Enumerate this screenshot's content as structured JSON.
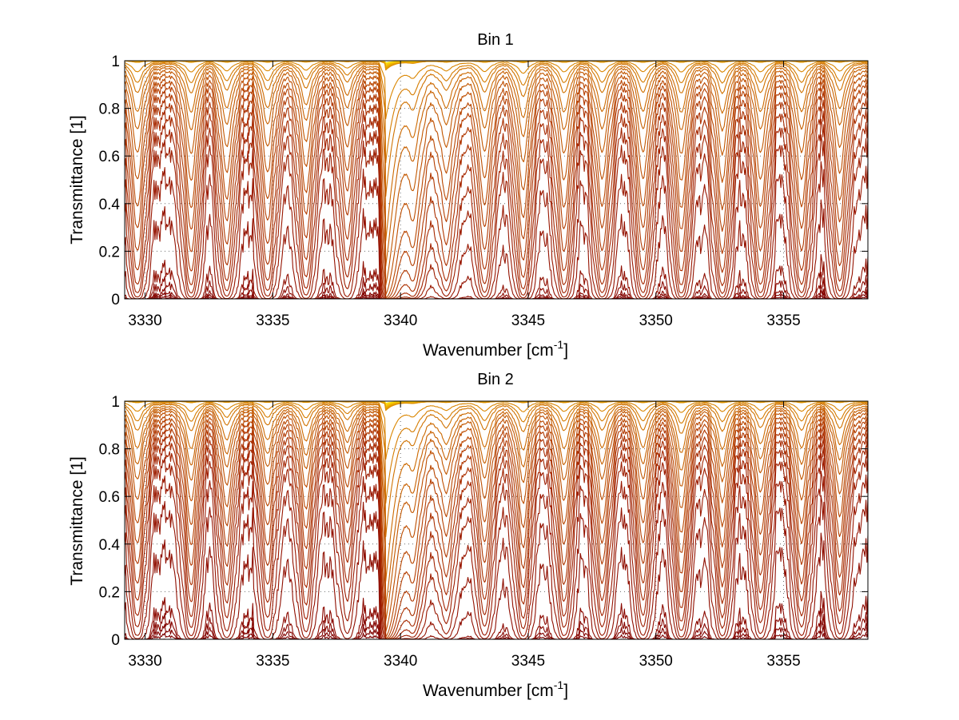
{
  "chart_data": [
    {
      "type": "line",
      "title": "Bin 1",
      "xlabel": "Wavenumber [cm",
      "xlabel_sup": "-1",
      "xlabel_close": "]",
      "ylabel": "Transmittance [1]",
      "xlim": [
        3329.2,
        3358.3
      ],
      "ylim": [
        0,
        1
      ],
      "xticks": [
        3330,
        3335,
        3340,
        3345,
        3350,
        3355
      ],
      "xtick_labels": [
        "3330",
        "3335",
        "3340",
        "3345",
        "3350",
        "3355"
      ],
      "yticks": [
        0,
        0.2,
        0.4,
        0.6,
        0.8,
        1
      ],
      "ytick_labels": [
        "0",
        "0.2",
        "0.4",
        "0.6",
        "0.8",
        "1"
      ],
      "grid": true,
      "band_edge": 3339.4,
      "lines": [
        {
          "x": 3329.7,
          "weight": 1.0
        },
        {
          "x": 3331.8,
          "weight": 1.0
        },
        {
          "x": 3333.2,
          "weight": 0.9
        },
        {
          "x": 3334.8,
          "weight": 0.9
        },
        {
          "x": 3336.3,
          "weight": 0.8
        },
        {
          "x": 3337.9,
          "weight": 0.6
        },
        {
          "x": 3340.5,
          "weight": 1.0
        },
        {
          "x": 3341.8,
          "weight": 0.7
        },
        {
          "x": 3343.3,
          "weight": 0.9
        },
        {
          "x": 3344.8,
          "weight": 1.1
        },
        {
          "x": 3346.4,
          "weight": 1.0
        },
        {
          "x": 3347.9,
          "weight": 1.0
        },
        {
          "x": 3349.5,
          "weight": 1.0
        },
        {
          "x": 3351.0,
          "weight": 1.0
        },
        {
          "x": 3352.6,
          "weight": 1.0
        },
        {
          "x": 3354.1,
          "weight": 1.0
        },
        {
          "x": 3355.7,
          "weight": 1.0
        },
        {
          "x": 3357.2,
          "weight": 0.9
        }
      ],
      "curve_baselines": [
        1.0,
        1.0,
        1.0,
        1.0,
        1.0,
        1.0,
        1.0,
        1.0,
        0.995,
        0.99,
        0.985,
        0.975,
        0.965,
        0.95,
        0.93,
        0.905,
        0.88,
        0.845,
        0.8,
        0.745,
        0.68,
        0.6,
        0.47,
        0.3,
        0.1,
        0.05,
        0.02,
        0.01,
        0.003,
        0.0
      ]
    },
    {
      "type": "line",
      "title": "Bin 2",
      "xlabel": "Wavenumber [cm",
      "xlabel_sup": "-1",
      "xlabel_close": "]",
      "ylabel": "Transmittance [1]",
      "xlim": [
        3329.2,
        3358.3
      ],
      "ylim": [
        0,
        1
      ],
      "xticks": [
        3330,
        3335,
        3340,
        3345,
        3350,
        3355
      ],
      "xtick_labels": [
        "3330",
        "3335",
        "3340",
        "3345",
        "3350",
        "3355"
      ],
      "yticks": [
        0,
        0.2,
        0.4,
        0.6,
        0.8,
        1
      ],
      "ytick_labels": [
        "0",
        "0.2",
        "0.4",
        "0.6",
        "0.8",
        "1"
      ],
      "grid": true,
      "band_edge": 3339.4,
      "lines": [
        {
          "x": 3329.7,
          "weight": 0.9
        },
        {
          "x": 3331.8,
          "weight": 0.9
        },
        {
          "x": 3333.2,
          "weight": 0.7
        },
        {
          "x": 3334.8,
          "weight": 0.7
        },
        {
          "x": 3336.3,
          "weight": 0.7
        },
        {
          "x": 3337.9,
          "weight": 0.5
        },
        {
          "x": 3340.5,
          "weight": 0.8
        },
        {
          "x": 3341.8,
          "weight": 0.6
        },
        {
          "x": 3343.3,
          "weight": 0.8
        },
        {
          "x": 3344.8,
          "weight": 0.9
        },
        {
          "x": 3346.4,
          "weight": 0.9
        },
        {
          "x": 3347.9,
          "weight": 0.9
        },
        {
          "x": 3349.5,
          "weight": 0.9
        },
        {
          "x": 3351.0,
          "weight": 1.0
        },
        {
          "x": 3352.6,
          "weight": 0.9
        },
        {
          "x": 3354.1,
          "weight": 0.8
        },
        {
          "x": 3355.7,
          "weight": 0.9
        },
        {
          "x": 3357.2,
          "weight": 0.8
        }
      ],
      "curve_baselines": [
        1.0,
        1.0,
        1.0,
        1.0,
        1.0,
        1.0,
        1.0,
        1.0,
        0.995,
        0.99,
        0.985,
        0.975,
        0.965,
        0.955,
        0.94,
        0.92,
        0.9,
        0.875,
        0.845,
        0.81,
        0.765,
        0.71,
        0.62,
        0.5,
        0.33,
        0.11,
        0.06,
        0.03,
        0.01,
        0.0
      ]
    }
  ]
}
